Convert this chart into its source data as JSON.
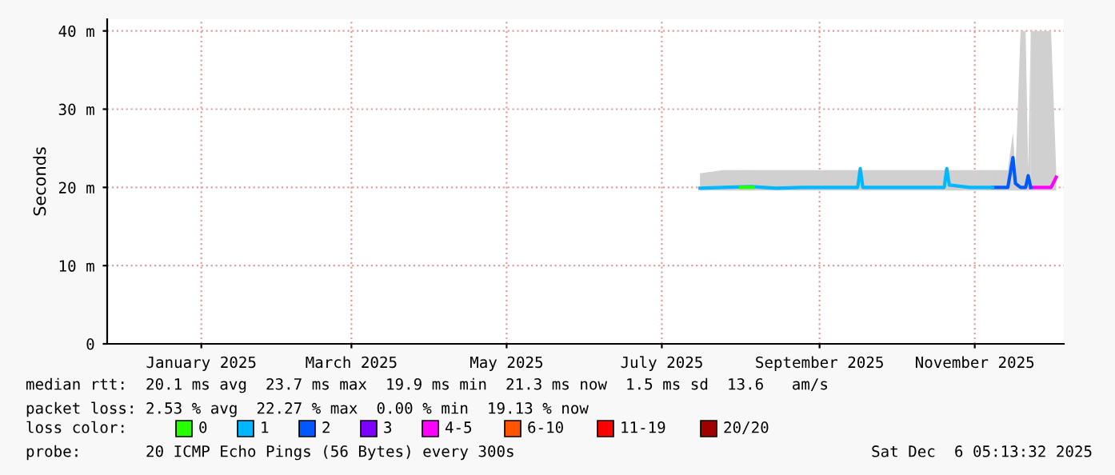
{
  "chart_data": {
    "type": "line",
    "ylabel": "Seconds",
    "legend_title": "loss color:",
    "legend": "bottom left",
    "grid": true,
    "xlim": [
      "2024-11-25",
      "2025-12-06"
    ],
    "xticks": [
      {
        "value": "2025-01-01",
        "label": "January 2025"
      },
      {
        "value": "2025-03-01",
        "label": "March 2025"
      },
      {
        "value": "2025-05-01",
        "label": "May 2025"
      },
      {
        "value": "2025-07-01",
        "label": "July 2025"
      },
      {
        "value": "2025-09-01",
        "label": "September 2025"
      },
      {
        "value": "2025-11-01",
        "label": "November 2025"
      }
    ],
    "ylim": [
      0,
      41.5
    ],
    "yticks": [
      0,
      {
        "value": 10,
        "label": "10 m"
      },
      {
        "value": 20,
        "label": "20 m"
      },
      {
        "value": 30,
        "label": "30 m"
      },
      {
        "value": 40,
        "label": "40 m"
      }
    ],
    "series": [
      {
        "name": "0",
        "color": "#26ff00",
        "x": [
          "2025-08-01",
          "2025-08-06"
        ],
        "values": [
          20.0,
          20.0
        ],
        "lower": [
          19.6,
          19.6
        ],
        "upper": [
          22.2,
          22.2
        ]
      },
      {
        "name": "1",
        "color": "#00b8ff",
        "x": [
          "2025-07-16",
          "2025-07-25",
          "2025-08-05",
          "2025-08-15",
          "2025-08-25",
          "2025-09-05",
          "2025-09-16",
          "2025-09-17",
          "2025-09-18",
          "2025-09-25",
          "2025-10-05",
          "2025-10-15",
          "2025-10-20",
          "2025-10-21",
          "2025-10-22",
          "2025-10-30",
          "2025-11-08"
        ],
        "values": [
          19.9,
          20.0,
          20.1,
          19.9,
          20.0,
          20.0,
          20.0,
          22.4,
          20.0,
          20.0,
          20.0,
          20.0,
          20.0,
          22.4,
          20.3,
          20.0,
          20.0
        ],
        "lower": [
          19.6,
          19.6,
          19.6,
          19.6,
          19.6,
          19.6,
          19.6,
          19.6,
          19.6,
          19.6,
          19.6,
          19.6,
          19.6,
          19.6,
          19.6,
          19.6,
          19.6
        ],
        "upper": [
          21.8,
          22.2,
          22.2,
          22.2,
          22.2,
          22.2,
          22.2,
          22.4,
          22.2,
          22.2,
          22.2,
          22.2,
          22.2,
          22.4,
          22.2,
          22.2,
          22.2
        ]
      },
      {
        "name": "2",
        "color": "#0059ff",
        "x": [
          "2025-11-08",
          "2025-11-14",
          "2025-11-16",
          "2025-11-17",
          "2025-11-19",
          "2025-11-21",
          "2025-11-22",
          "2025-11-23"
        ],
        "values": [
          20.0,
          20.0,
          23.8,
          20.5,
          20.0,
          20.0,
          21.5,
          20.0
        ],
        "lower": [
          19.6,
          19.6,
          19.6,
          19.6,
          19.6,
          19.6,
          19.6,
          19.6
        ],
        "upper": [
          22.2,
          22.2,
          27.0,
          22.2,
          40.0,
          40.0,
          22.2,
          40.0
        ]
      },
      {
        "name": "3",
        "color": "#7e00ff"
      },
      {
        "name": "4-5",
        "color": "#ff00ff",
        "x": [
          "2025-11-23",
          "2025-11-28",
          "2025-12-01",
          "2025-12-03"
        ],
        "values": [
          20.0,
          20.0,
          20.0,
          21.3
        ],
        "lower": [
          19.6,
          19.6,
          19.6,
          19.6
        ],
        "upper": [
          40.0,
          40.0,
          40.0,
          22.2
        ]
      },
      {
        "name": "6-10",
        "color": "#ff5500"
      },
      {
        "name": "11-19",
        "color": "#ff0000"
      },
      {
        "name": "20/20",
        "color": "#a10000"
      }
    ],
    "annotations": [
      "median rtt:  20.1 ms avg  23.7 ms max  19.9 ms min  21.3 ms now  1.5 ms sd  13.6   am/s",
      "packet loss: 2.53 % avg  22.27 % max  0.00 % min  19.13 % now",
      "probe:       20 ICMP Echo Pings (56 Bytes) every 300s",
      "Sat Dec  6 05:13:32 2025"
    ]
  }
}
